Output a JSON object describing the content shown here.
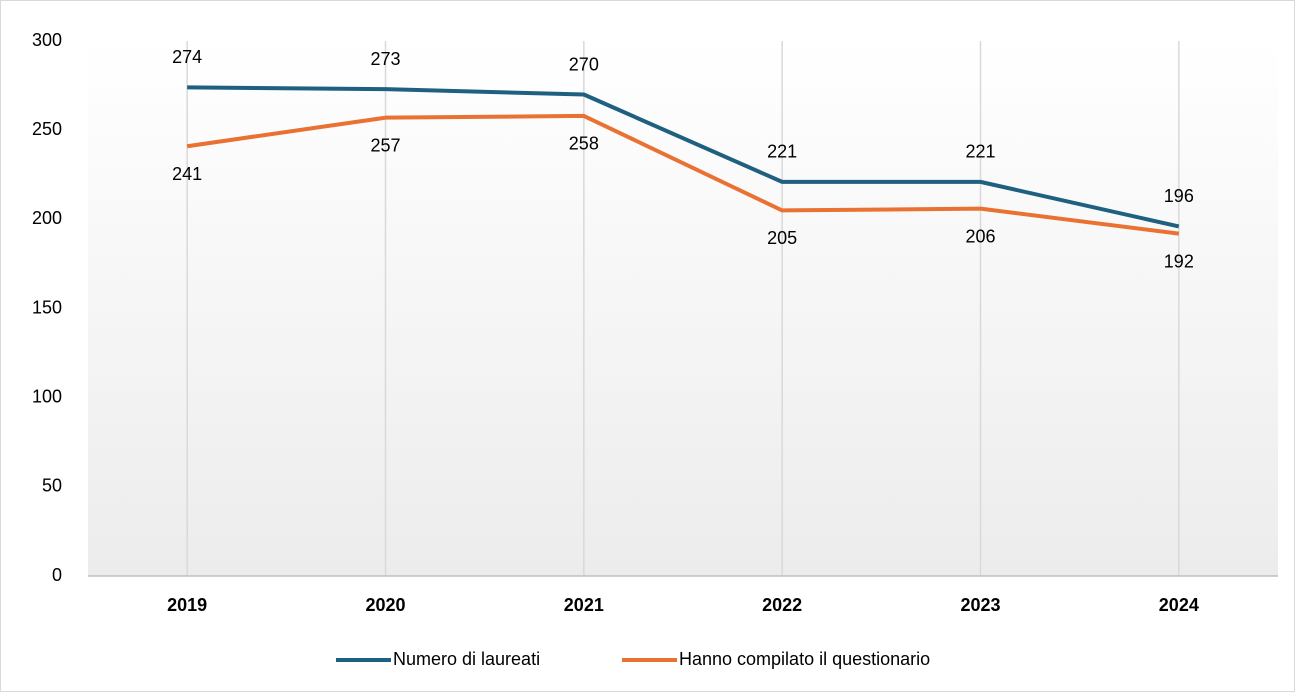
{
  "chart_data": {
    "type": "line",
    "categories": [
      "2019",
      "2020",
      "2021",
      "2022",
      "2023",
      "2024"
    ],
    "series": [
      {
        "name": "Numero di laureati",
        "color": "#1f5f80",
        "values": [
          274,
          273,
          270,
          221,
          221,
          196
        ],
        "label_position": "above"
      },
      {
        "name": "Hanno compilato il questionario",
        "color": "#e97132",
        "values": [
          241,
          257,
          258,
          205,
          206,
          192
        ],
        "label_position": "below"
      }
    ],
    "ylim": [
      0,
      300
    ],
    "yticks": [
      0,
      50,
      100,
      150,
      200,
      250,
      300
    ],
    "xgrid": true,
    "legend": "bottom"
  }
}
